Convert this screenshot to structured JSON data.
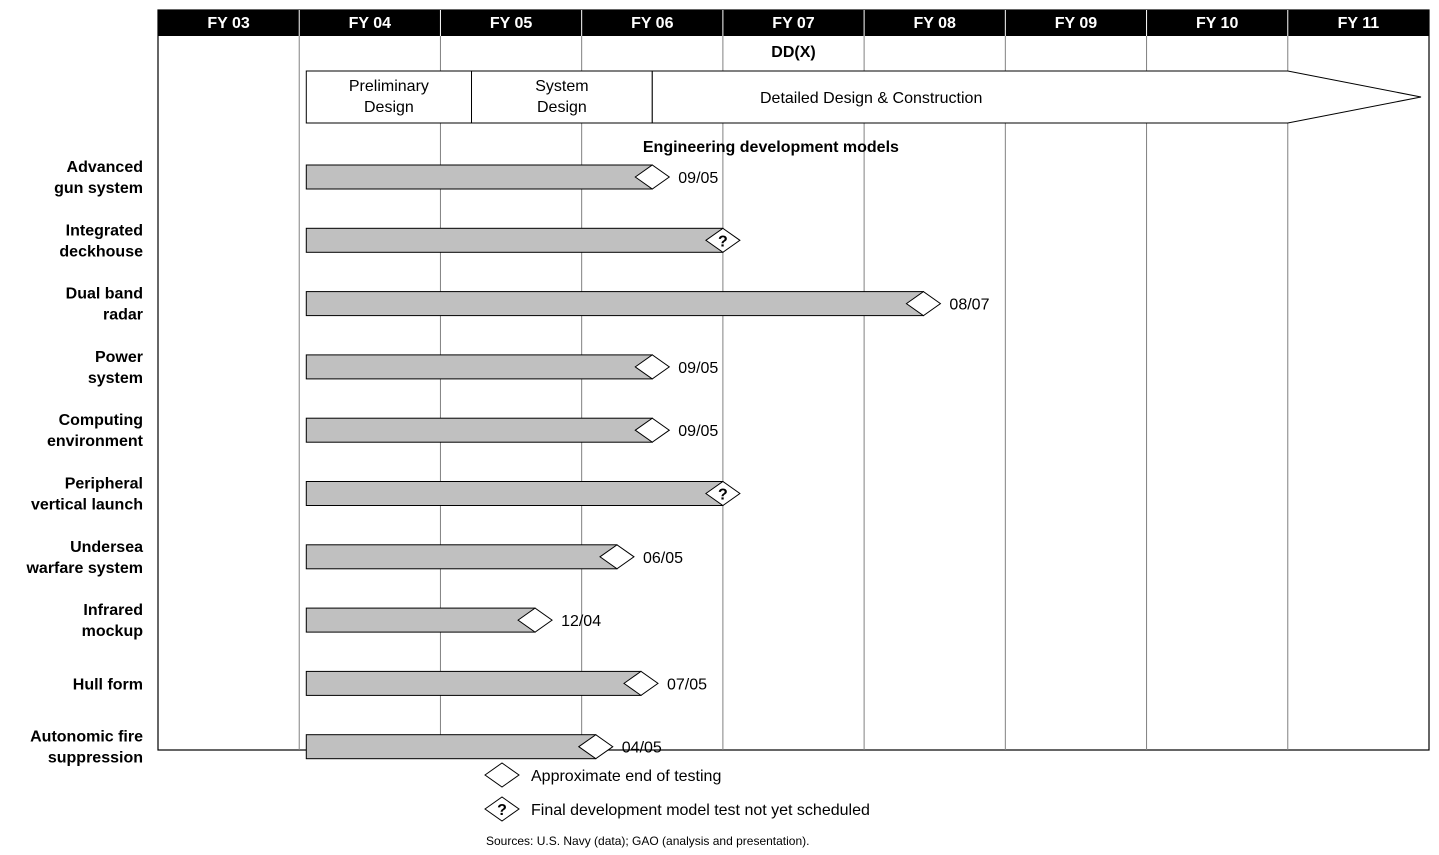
{
  "chart_data": {
    "type": "gantt",
    "program_label": "DD(X)",
    "fiscal_years": [
      "FY 03",
      "FY 04",
      "FY 05",
      "FY 06",
      "FY 07",
      "FY 08",
      "FY 09",
      "FY 10",
      "FY 11"
    ],
    "phases": [
      {
        "label": [
          "Preliminary",
          "Design"
        ],
        "start": 2003.55,
        "end": 2004.72
      },
      {
        "label": [
          "System",
          "Design"
        ],
        "start": 2004.72,
        "end": 2006.0
      },
      {
        "label": [
          "Detailed Design & Construction"
        ],
        "start": 2006.0,
        "end": 2012.0
      }
    ],
    "section_title": "Engineering development models",
    "rows": [
      {
        "label": [
          "Advanced",
          "gun system"
        ],
        "start": 2003.55,
        "end": 2006.0,
        "marker": "end_of_testing",
        "date_label": "09/05"
      },
      {
        "label": [
          "Integrated",
          "deckhouse"
        ],
        "start": 2003.55,
        "end": 2006.5,
        "marker": "not_scheduled",
        "date_label": ""
      },
      {
        "label": [
          "Dual band",
          "radar"
        ],
        "start": 2003.55,
        "end": 2007.92,
        "marker": "end_of_testing",
        "date_label": "08/07"
      },
      {
        "label": [
          "Power",
          "system"
        ],
        "start": 2003.55,
        "end": 2006.0,
        "marker": "end_of_testing",
        "date_label": "09/05"
      },
      {
        "label": [
          "Computing",
          "environment"
        ],
        "start": 2003.55,
        "end": 2006.0,
        "marker": "end_of_testing",
        "date_label": "09/05"
      },
      {
        "label": [
          "Peripheral",
          "vertical launch"
        ],
        "start": 2003.55,
        "end": 2006.5,
        "marker": "not_scheduled",
        "date_label": ""
      },
      {
        "label": [
          "Undersea",
          "warfare system"
        ],
        "start": 2003.55,
        "end": 2005.75,
        "marker": "end_of_testing",
        "date_label": "06/05"
      },
      {
        "label": [
          "Infrared",
          "mockup"
        ],
        "start": 2003.55,
        "end": 2005.17,
        "marker": "end_of_testing",
        "date_label": "12/04"
      },
      {
        "label": [
          "Hull form"
        ],
        "start": 2003.55,
        "end": 2005.92,
        "marker": "end_of_testing",
        "date_label": "07/05"
      },
      {
        "label": [
          "Autonomic fire",
          "suppression"
        ],
        "start": 2003.55,
        "end": 2005.6,
        "marker": "end_of_testing",
        "date_label": "04/05"
      }
    ],
    "legend": [
      {
        "marker": "end_of_testing",
        "text": "Approximate end of testing"
      },
      {
        "marker": "not_scheduled",
        "text": "Final development model test not yet scheduled"
      }
    ],
    "source_note": "Sources: U.S. Navy (data); GAO (analysis and presentation).",
    "colors": {
      "header": "#000000",
      "bar_fill": "#c0c0c0",
      "grid": "#808080",
      "marker_fill": "#ffffff"
    }
  }
}
